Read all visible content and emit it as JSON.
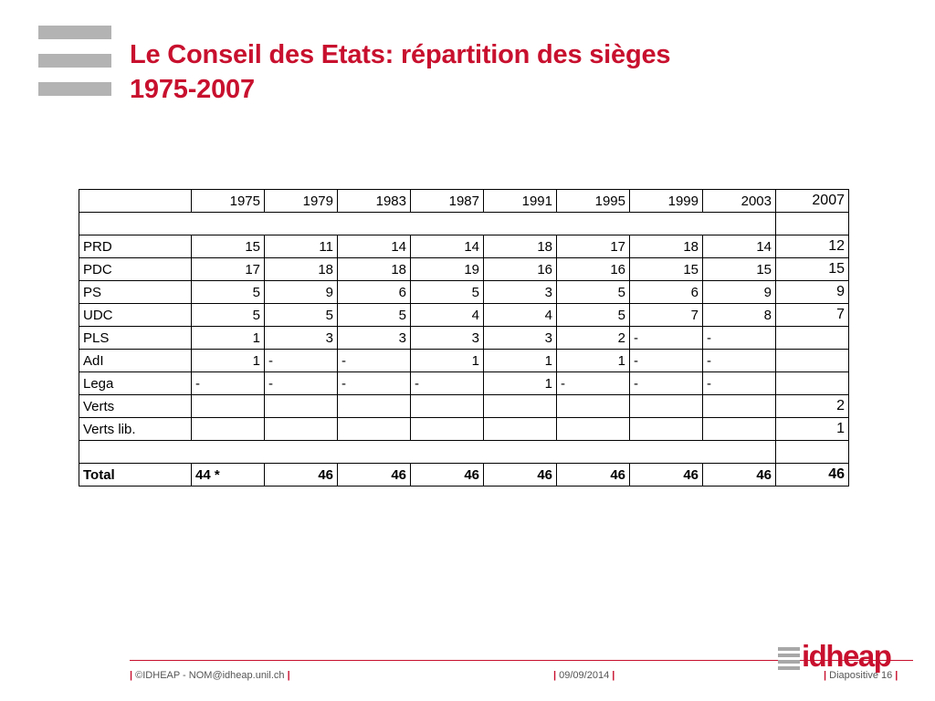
{
  "slide": {
    "title_line1": "Le Conseil des Etats: répartition des sièges",
    "title_line2": "1975-2007"
  },
  "table": {
    "header": [
      "",
      "1975",
      "1979",
      "1983",
      "1987",
      "1991",
      "1995",
      "1999",
      "2003",
      "2007"
    ],
    "rows": [
      [
        "PRD",
        "15",
        "11",
        "14",
        "14",
        "18",
        "17",
        "18",
        "14",
        "12"
      ],
      [
        "PDC",
        "17",
        "18",
        "18",
        "19",
        "16",
        "16",
        "15",
        "15",
        "15"
      ],
      [
        "PS",
        "5",
        "9",
        "6",
        "5",
        "3",
        "5",
        "6",
        "9",
        "9"
      ],
      [
        "UDC",
        "5",
        "5",
        "5",
        "4",
        "4",
        "5",
        "7",
        "8",
        "7"
      ],
      [
        "PLS",
        "1",
        "3",
        "3",
        "3",
        "3",
        "2",
        "-",
        "-",
        ""
      ],
      [
        "AdI",
        "1",
        "-",
        "-",
        "1",
        "1",
        "1",
        "-",
        "-",
        ""
      ],
      [
        "Lega",
        "-",
        "-",
        "-",
        "-",
        "1",
        "-",
        "-",
        "-",
        ""
      ],
      [
        "Verts",
        "",
        "",
        "",
        "",
        "",
        "",
        "",
        "",
        "2"
      ],
      [
        "Verts lib.",
        "",
        "",
        "",
        "",
        "",
        "",
        "",
        "",
        "1"
      ]
    ],
    "total": [
      "Total",
      "44 *",
      "46",
      "46",
      "46",
      "46",
      "46",
      "46",
      "46",
      "46"
    ]
  },
  "footer": {
    "left": "©IDHEAP - NOM@idheap.unil.ch",
    "center": "09/09/2014",
    "right": "Diapositive 16",
    "pipe": "|"
  },
  "logo": {
    "text": "idheap"
  },
  "colors": {
    "accent": "#c8102e",
    "bars": "#b3b3b3"
  }
}
